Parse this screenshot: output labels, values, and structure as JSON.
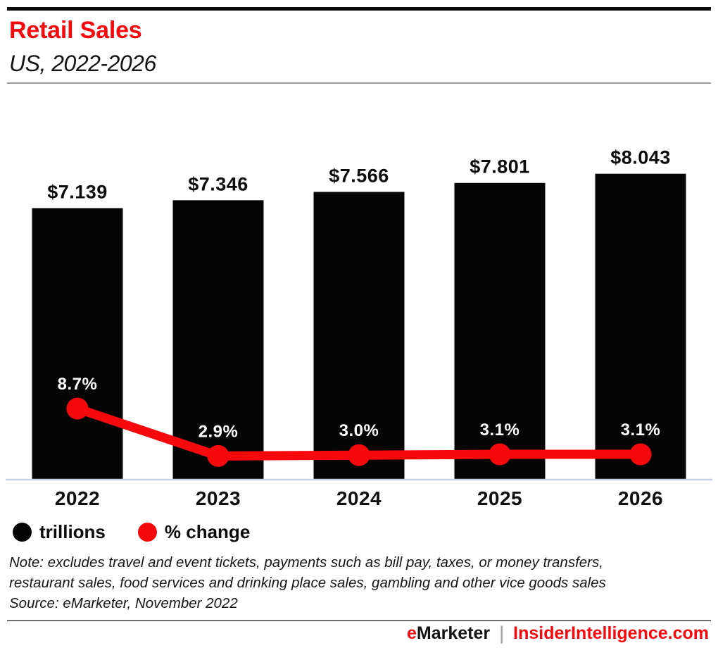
{
  "page": {
    "title": "Retail Sales",
    "subtitle": "US, 2022-2026"
  },
  "colors": {
    "accent_red": "#f6090d",
    "bar_black": "#050505",
    "axis_line": "#c7cfe2",
    "pct_label_text": "#ffffff"
  },
  "chart_data": {
    "type": "bar",
    "title": "Retail Sales",
    "subtitle": "US, 2022-2026",
    "categories": [
      "2022",
      "2023",
      "2024",
      "2025",
      "2026"
    ],
    "series": [
      {
        "name": "trillions",
        "mark": "bar",
        "values": [
          7.139,
          7.346,
          7.566,
          7.801,
          8.043
        ],
        "labels": [
          "$7.139",
          "$7.346",
          "$7.566",
          "$7.801",
          "$8.043"
        ],
        "color": "#050505"
      },
      {
        "name": "% change",
        "mark": "line",
        "values": [
          8.7,
          2.9,
          3.0,
          3.1,
          3.1
        ],
        "labels": [
          "8.7%",
          "2.9%",
          "3.0%",
          "3.1%",
          "3.1%"
        ],
        "color": "#f6090d"
      }
    ],
    "xlabel": "",
    "ylabel": "",
    "bar_axis_range": [
      0,
      8.5
    ],
    "pct_axis_range": [
      0,
      10
    ],
    "grid": false,
    "value_axis_visible": false,
    "legend_position": "bottom-left"
  },
  "legend": {
    "items": [
      {
        "label": "trillions",
        "color": "#050505"
      },
      {
        "label": "% change",
        "color": "#f6090d"
      }
    ]
  },
  "note": {
    "lines": [
      "Note: excludes travel and event tickets, payments such as bill pay, taxes, or money transfers,",
      "restaurant sales, food services and drinking place sales, gambling and other vice goods sales"
    ],
    "source": "Source: eMarketer, November 2022"
  },
  "footer": {
    "brand_e": "e",
    "brand_rest": "Marketer",
    "separator": "|",
    "site": "InsiderIntelligence.com"
  }
}
